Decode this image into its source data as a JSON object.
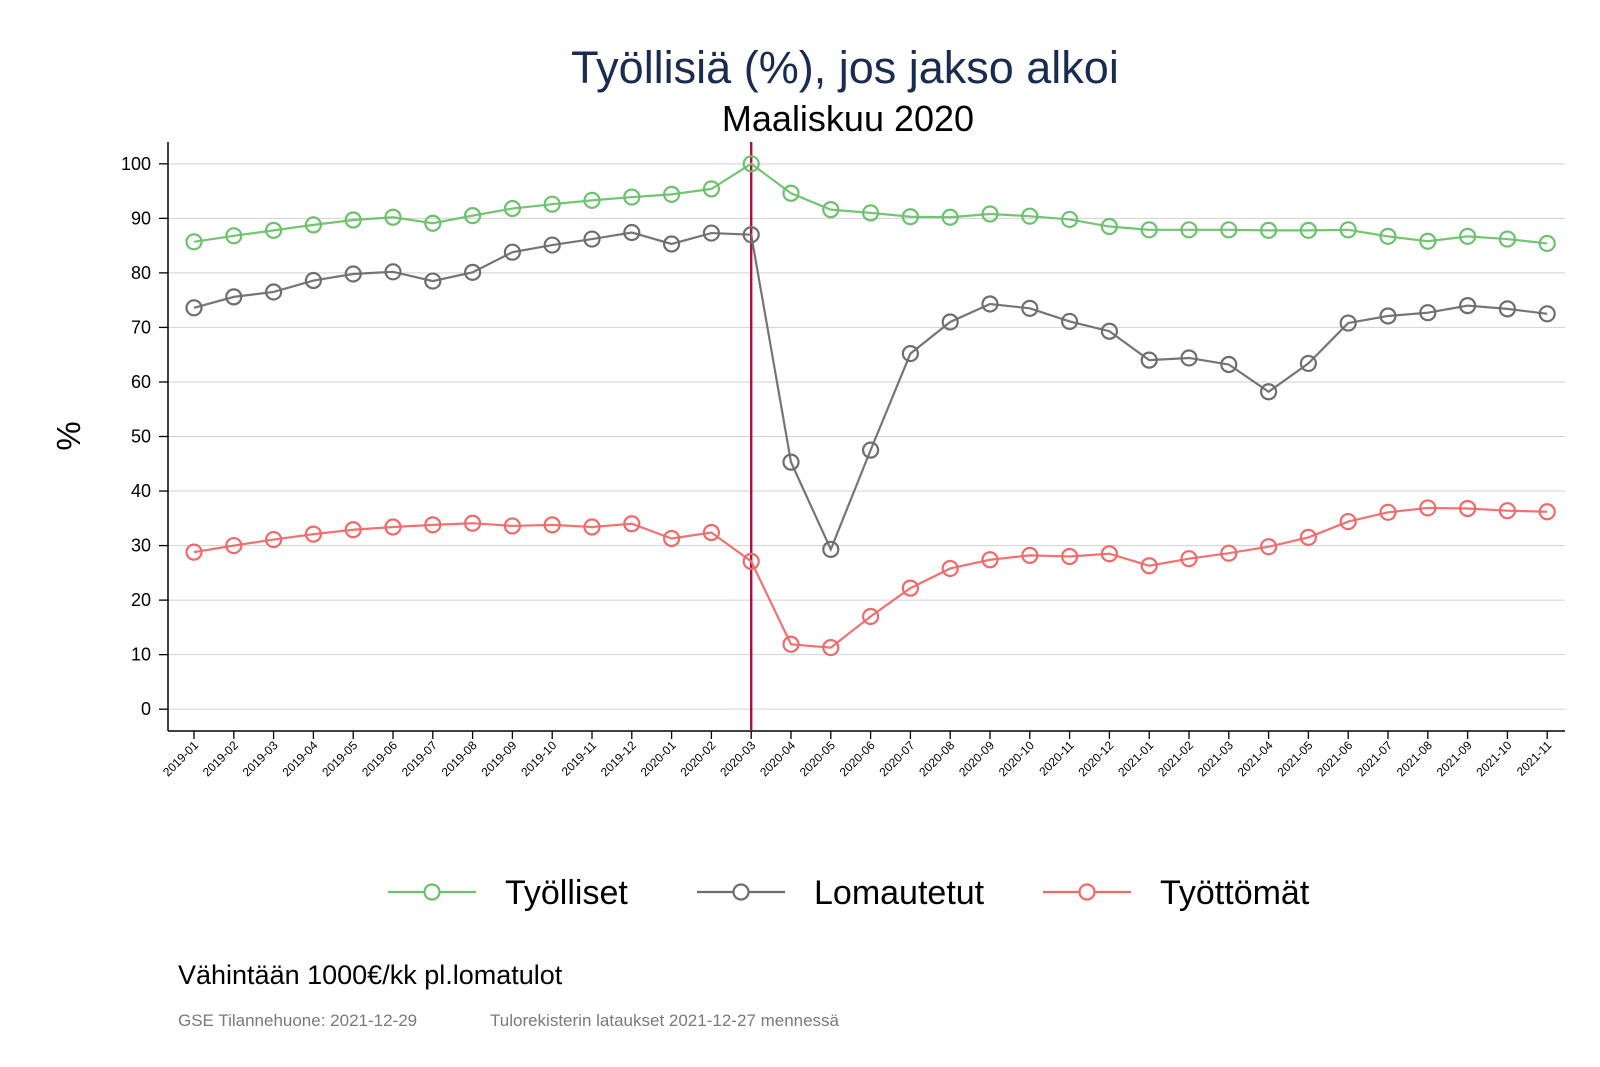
{
  "chart_data": {
    "type": "line",
    "title": "Työllisiä (%), jos jakso alkoi",
    "subtitle": "Maaliskuu 2020",
    "ylabel": "%",
    "xlabel": "",
    "ylim": [
      -4,
      104
    ],
    "yticks": [
      0,
      10,
      20,
      30,
      40,
      50,
      60,
      70,
      80,
      90,
      100
    ],
    "grid": true,
    "legend_position": "bottom",
    "reference_line": {
      "category": "2020-03",
      "color": "#b0113a"
    },
    "categories": [
      "2019-01",
      "2019-02",
      "2019-03",
      "2019-04",
      "2019-05",
      "2019-06",
      "2019-07",
      "2019-08",
      "2019-09",
      "2019-10",
      "2019-11",
      "2019-12",
      "2020-01",
      "2020-02",
      "2020-03",
      "2020-04",
      "2020-05",
      "2020-06",
      "2020-07",
      "2020-08",
      "2020-09",
      "2020-10",
      "2020-11",
      "2020-12",
      "2021-01",
      "2021-02",
      "2021-03",
      "2021-04",
      "2021-05",
      "2021-06",
      "2021-07",
      "2021-08",
      "2021-09",
      "2021-10",
      "2021-11"
    ],
    "series": [
      {
        "name": "Työlliset",
        "color": "#6cc16c",
        "values": [
          85.7,
          86.8,
          87.8,
          88.8,
          89.7,
          90.2,
          89.1,
          90.5,
          91.8,
          92.6,
          93.3,
          93.9,
          94.4,
          95.4,
          100,
          94.6,
          91.6,
          91.0,
          90.3,
          90.2,
          90.8,
          90.4,
          89.8,
          88.5,
          87.9,
          87.9,
          87.9,
          87.8,
          87.8,
          87.9,
          86.7,
          85.8,
          86.7,
          86.2,
          85.4
        ]
      },
      {
        "name": "Lomautetut",
        "color": "#6e6e6e",
        "values": [
          73.6,
          75.6,
          76.5,
          78.6,
          79.8,
          80.2,
          78.5,
          80.1,
          83.8,
          85.1,
          86.2,
          87.4,
          85.3,
          87.3,
          87.0,
          45.3,
          29.3,
          47.5,
          65.2,
          71.0,
          74.3,
          73.5,
          71.1,
          69.3,
          64.0,
          64.4,
          63.2,
          58.2,
          63.4,
          70.8,
          72.1,
          72.7,
          74.0,
          73.4,
          72.5
        ]
      },
      {
        "name": "Työttömät",
        "color": "#f06a6a",
        "values": [
          28.8,
          30.0,
          31.1,
          32.1,
          32.9,
          33.4,
          33.8,
          34.1,
          33.6,
          33.8,
          33.4,
          34.0,
          31.3,
          32.4,
          27.1,
          11.9,
          11.3,
          17.0,
          22.2,
          25.8,
          27.4,
          28.2,
          28.0,
          28.5,
          26.3,
          27.6,
          28.6,
          29.8,
          31.5,
          34.4,
          36.1,
          36.9,
          36.8,
          36.4,
          36.2
        ]
      }
    ]
  },
  "note": "Vähintään 1000€/kk pl.lomatulot",
  "footer": {
    "source": "GSE Tilannehuone: 2021-12-29",
    "updates": "Tulorekisterin lataukset 2021-12-27 mennessä"
  }
}
